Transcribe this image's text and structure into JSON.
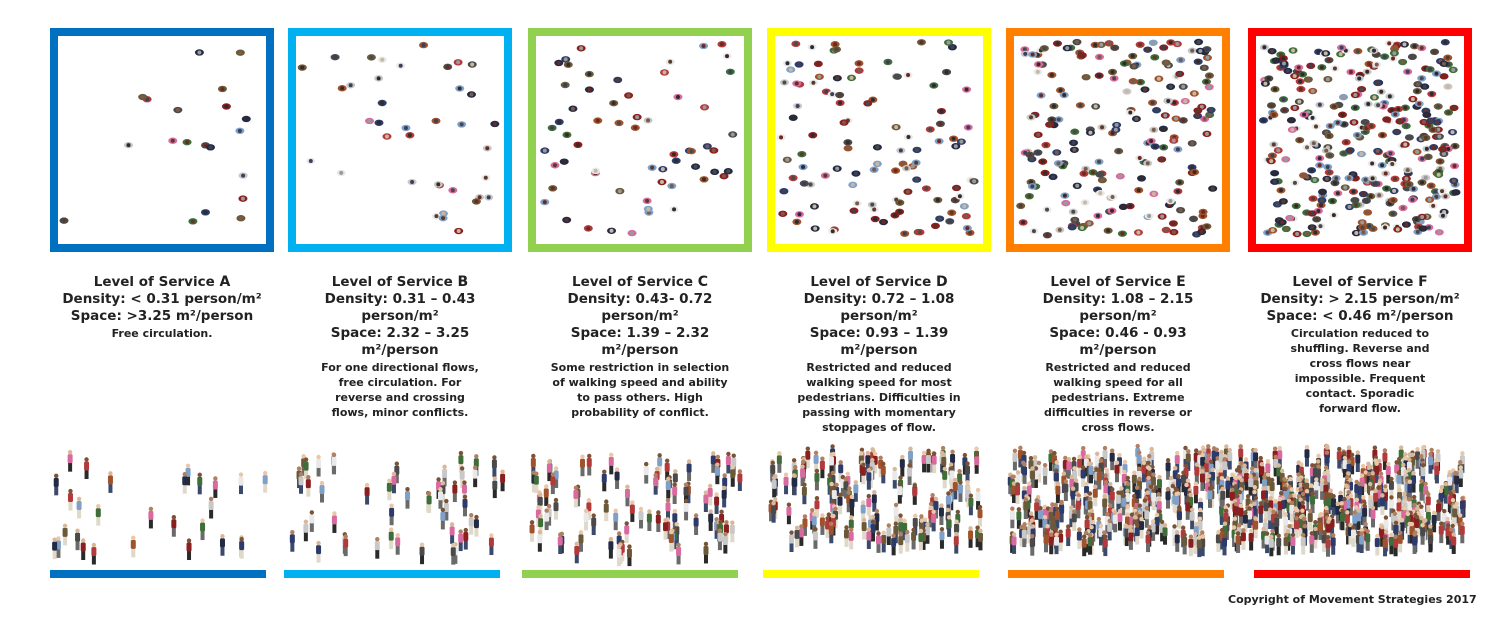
{
  "copyright": "Copyright of Movement Strategies 2017",
  "levels": [
    {
      "key": "A",
      "title": "Level of Service ",
      "letter": "A",
      "density": "Density: < 0.31 person/m²",
      "space": "Space: >3.25 m²/person",
      "description": "Free circulation.",
      "color": "#0070C0",
      "density_dots": 20,
      "crowd_people": 28
    },
    {
      "key": "B",
      "title": "Level of Service ",
      "letter": "B",
      "density": "Density: 0.31 – 0.43 person/m²",
      "space": "Space: 2.32 – 3.25 m²/person",
      "description": "For one directional flows, free circulation. For reverse and crossing flows, minor conflicts.",
      "color": "#00B0F0",
      "density_dots": 38,
      "crowd_people": 52
    },
    {
      "key": "C",
      "title": "Level of Service ",
      "letter": "C",
      "density": "Density: 0.43- 0.72 person/m²",
      "space": "Space: 1.39 – 2.32 m²/person",
      "description": "Some restriction in selection of walking speed and ability to pass others. High probability of conflict.",
      "color": "#92D050",
      "density_dots": 60,
      "crowd_people": 90
    },
    {
      "key": "D",
      "title": "Level of Service ",
      "letter": "D",
      "density": "Density: 0.72 – 1.08 person/m²",
      "space": "Space: 0.93 – 1.39 m²/person",
      "description": "Restricted and reduced walking speed for most pedestrians. Difficulties in passing with momentary stoppages of flow.",
      "color": "#FFFF00",
      "density_dots": 110,
      "crowd_people": 150
    },
    {
      "key": "E",
      "title": "Level of Service ",
      "letter": "E",
      "density": "Density: 1.08 – 2.15 person/m²",
      "space": "Space: 0.46 - 0.93 m²/person",
      "description": "Restricted and reduced walking speed for all pedestrians. Extreme difficulties in reverse or cross flows.",
      "color": "#FF8000",
      "density_dots": 200,
      "crowd_people": 260
    },
    {
      "key": "F",
      "title": "Level of Service ",
      "letter": "F",
      "density": "Density: > 2.15 person/m²",
      "space": "Space: < 0.46 m²/person",
      "description": "Circulation reduced to shuffling. Reverse and cross flows near impossible. Frequent contact. Sporadic forward flow.",
      "color": "#FF0000",
      "density_dots": 320,
      "crowd_people": 380
    }
  ]
}
